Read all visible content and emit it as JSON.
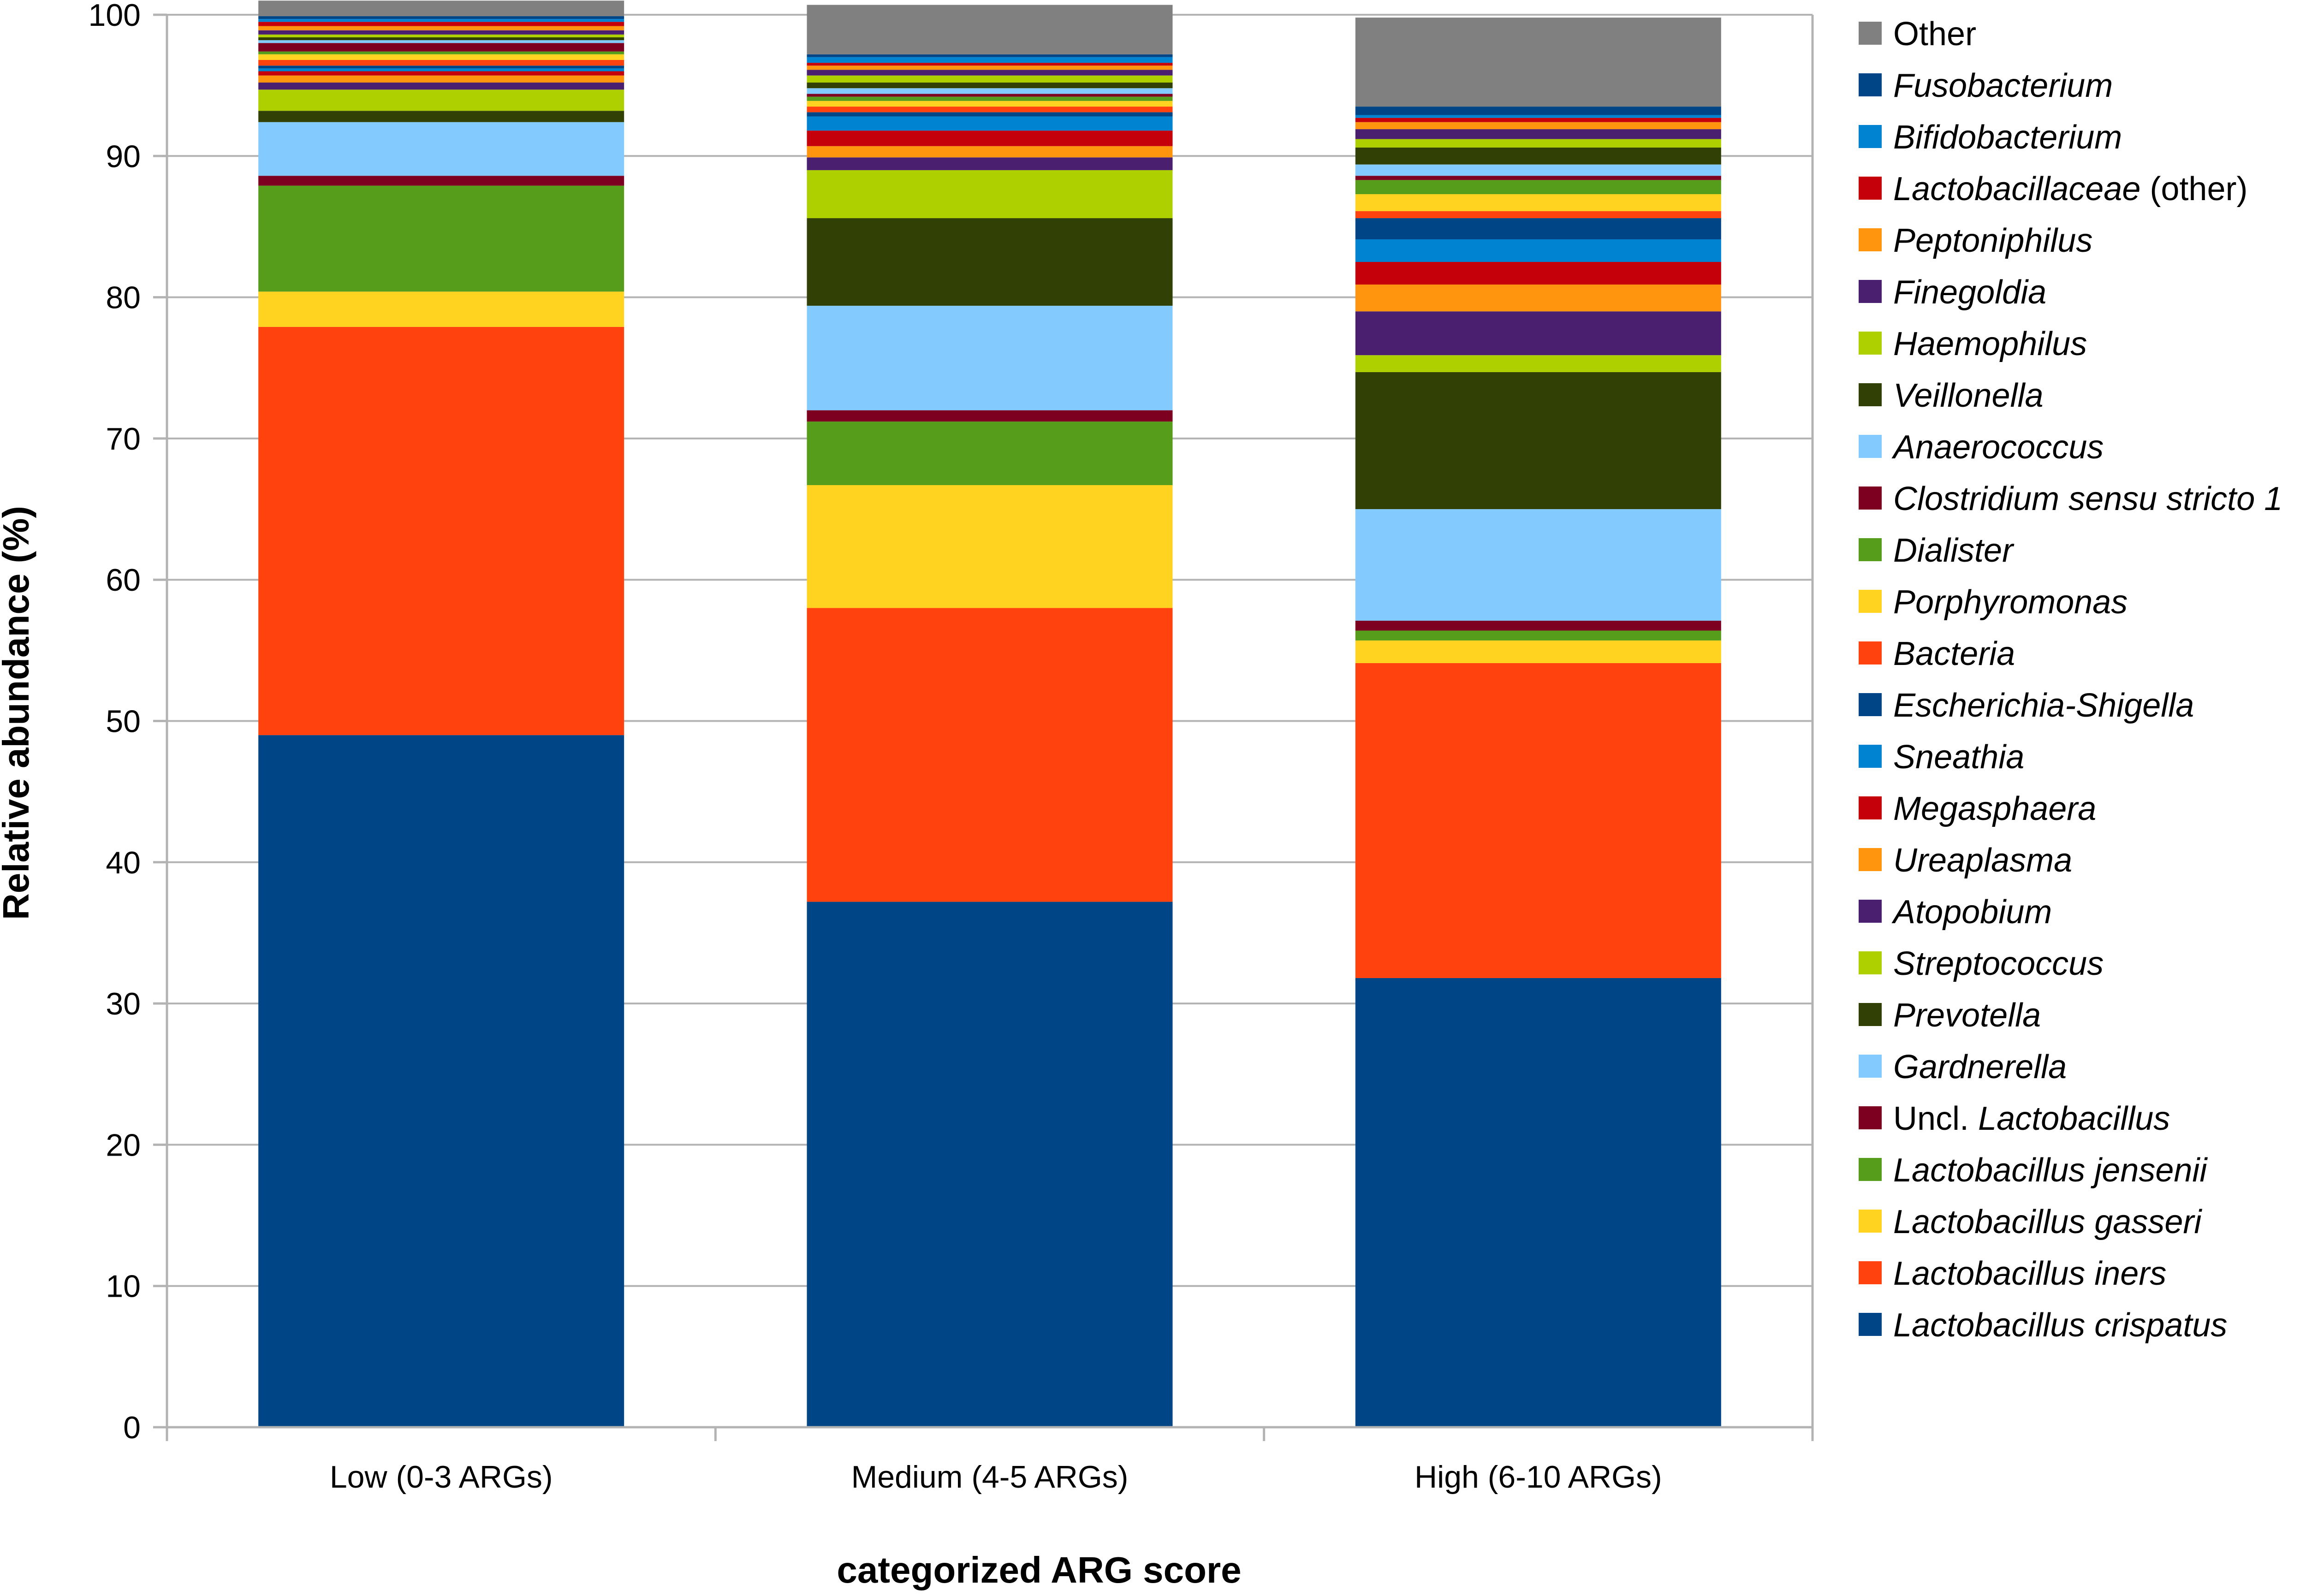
{
  "chart_data": {
    "type": "bar",
    "stacked": true,
    "xlabel": "categorized ARG score",
    "ylabel": "Relative abundance (%)",
    "ylim": [
      0,
      100
    ],
    "yticks": [
      "0",
      "10",
      "20",
      "30",
      "40",
      "50",
      "60",
      "70",
      "80",
      "90",
      "100"
    ],
    "grid": true,
    "legend_position": "right",
    "categories": [
      "Low (0-3 ARGs)",
      "Medium (4-5 ARGs)",
      "High (6-10 ARGs)"
    ],
    "series": [
      {
        "name": "Lactobacillus crispatus",
        "label_parts": [
          {
            "text": "Lactobacillus crispatus",
            "italic": true
          }
        ],
        "color": "#004586",
        "values": [
          49.0,
          37.2,
          31.8
        ]
      },
      {
        "name": "Lactobacillus iners",
        "label_parts": [
          {
            "text": "Lactobacillus iners",
            "italic": true
          }
        ],
        "color": "#ff420e",
        "values": [
          28.9,
          20.8,
          22.3
        ]
      },
      {
        "name": "Lactobacillus gasseri",
        "label_parts": [
          {
            "text": "Lactobacillus gasseri",
            "italic": true
          }
        ],
        "color": "#ffd320",
        "values": [
          2.5,
          8.7,
          1.6
        ]
      },
      {
        "name": "Lactobacillus jensenii",
        "label_parts": [
          {
            "text": "Lactobacillus jensenii",
            "italic": true
          }
        ],
        "color": "#579d1c",
        "values": [
          7.5,
          4.5,
          0.7
        ]
      },
      {
        "name": "Uncl. Lactobacillus",
        "label_parts": [
          {
            "text": "Uncl. ",
            "italic": false
          },
          {
            "text": "Lactobacillus",
            "italic": true
          }
        ],
        "color": "#7e0021",
        "values": [
          0.7,
          0.8,
          0.7
        ]
      },
      {
        "name": "Gardnerella",
        "label_parts": [
          {
            "text": "Gardnerella",
            "italic": true
          }
        ],
        "color": "#83caff",
        "values": [
          3.8,
          7.4,
          7.9
        ]
      },
      {
        "name": "Prevotella",
        "label_parts": [
          {
            "text": "Prevotella",
            "italic": true
          }
        ],
        "color": "#314004",
        "values": [
          0.8,
          6.2,
          9.7
        ]
      },
      {
        "name": "Streptococcus",
        "label_parts": [
          {
            "text": "Streptococcus",
            "italic": true
          }
        ],
        "color": "#aecf00",
        "values": [
          1.5,
          3.4,
          1.2
        ]
      },
      {
        "name": "Atopobium",
        "label_parts": [
          {
            "text": "Atopobium",
            "italic": true
          }
        ],
        "color": "#4b1f6f",
        "values": [
          0.5,
          0.9,
          3.1
        ]
      },
      {
        "name": "Ureaplasma",
        "label_parts": [
          {
            "text": "Ureaplasma",
            "italic": true
          }
        ],
        "color": "#ff950e",
        "values": [
          0.5,
          0.8,
          1.9
        ]
      },
      {
        "name": "Megasphaera",
        "label_parts": [
          {
            "text": "Megasphaera",
            "italic": true
          }
        ],
        "color": "#c5000b",
        "values": [
          0.3,
          1.1,
          1.6
        ]
      },
      {
        "name": "Sneathia",
        "label_parts": [
          {
            "text": "Sneathia",
            "italic": true
          }
        ],
        "color": "#0084d1",
        "values": [
          0.2,
          1.0,
          1.6
        ]
      },
      {
        "name": "Escherichia-Shigella",
        "label_parts": [
          {
            "text": "Escherichia-Shigella",
            "italic": true
          }
        ],
        "color": "#004586",
        "values": [
          0.2,
          0.3,
          1.5
        ]
      },
      {
        "name": "Bacteria",
        "label_parts": [
          {
            "text": "Bacteria",
            "italic": true
          }
        ],
        "color": "#ff420e",
        "values": [
          0.4,
          0.4,
          0.5
        ]
      },
      {
        "name": "Porphyromonas",
        "label_parts": [
          {
            "text": "Porphyromonas",
            "italic": true
          }
        ],
        "color": "#ffd320",
        "values": [
          0.4,
          0.4,
          1.2
        ]
      },
      {
        "name": "Dialister",
        "label_parts": [
          {
            "text": "Dialister",
            "italic": true
          }
        ],
        "color": "#579d1c",
        "values": [
          0.2,
          0.3,
          1.0
        ]
      },
      {
        "name": "Clostridium sensu stricto 1",
        "label_parts": [
          {
            "text": "Clostridium sensu stricto 1",
            "italic": true
          }
        ],
        "color": "#7e0021",
        "values": [
          0.6,
          0.2,
          0.3
        ]
      },
      {
        "name": "Anaerococcus",
        "label_parts": [
          {
            "text": "Anaerococcus",
            "italic": true
          }
        ],
        "color": "#83caff",
        "values": [
          0.2,
          0.4,
          0.8
        ]
      },
      {
        "name": "Veillonella",
        "label_parts": [
          {
            "text": "Veillonella",
            "italic": true
          }
        ],
        "color": "#314004",
        "values": [
          0.2,
          0.4,
          1.2
        ]
      },
      {
        "name": "Haemophilus",
        "label_parts": [
          {
            "text": "Haemophilus",
            "italic": true
          }
        ],
        "color": "#aecf00",
        "values": [
          0.2,
          0.5,
          0.6
        ]
      },
      {
        "name": "Finegoldia",
        "label_parts": [
          {
            "text": "Finegoldia",
            "italic": true
          }
        ],
        "color": "#4b1f6f",
        "values": [
          0.3,
          0.4,
          0.7
        ]
      },
      {
        "name": "Peptoniphilus",
        "label_parts": [
          {
            "text": "Peptoniphilus",
            "italic": true
          }
        ],
        "color": "#ff950e",
        "values": [
          0.3,
          0.3,
          0.5
        ]
      },
      {
        "name": "Lactobacillaceae (other)",
        "label_parts": [
          {
            "text": "Lactobacillaceae",
            "italic": true
          },
          {
            "text": " (other)",
            "italic": false
          }
        ],
        "color": "#c5000b",
        "values": [
          0.3,
          0.2,
          0.3
        ]
      },
      {
        "name": "Bifidobacterium",
        "label_parts": [
          {
            "text": "Bifidobacterium",
            "italic": true
          }
        ],
        "color": "#0084d1",
        "values": [
          0.2,
          0.4,
          0.2
        ]
      },
      {
        "name": "Fusobacterium",
        "label_parts": [
          {
            "text": "Fusobacterium",
            "italic": true
          }
        ],
        "color": "#004586",
        "values": [
          0.2,
          0.2,
          0.6
        ]
      },
      {
        "name": "Other",
        "label_parts": [
          {
            "text": "Other",
            "italic": false
          }
        ],
        "color": "#808080",
        "values": [
          1.1,
          3.5,
          6.3
        ]
      }
    ]
  },
  "colors": {
    "axis": "#b3b3b3",
    "grid": "#b3b3b3",
    "text": "#000000",
    "background": "#ffffff"
  }
}
